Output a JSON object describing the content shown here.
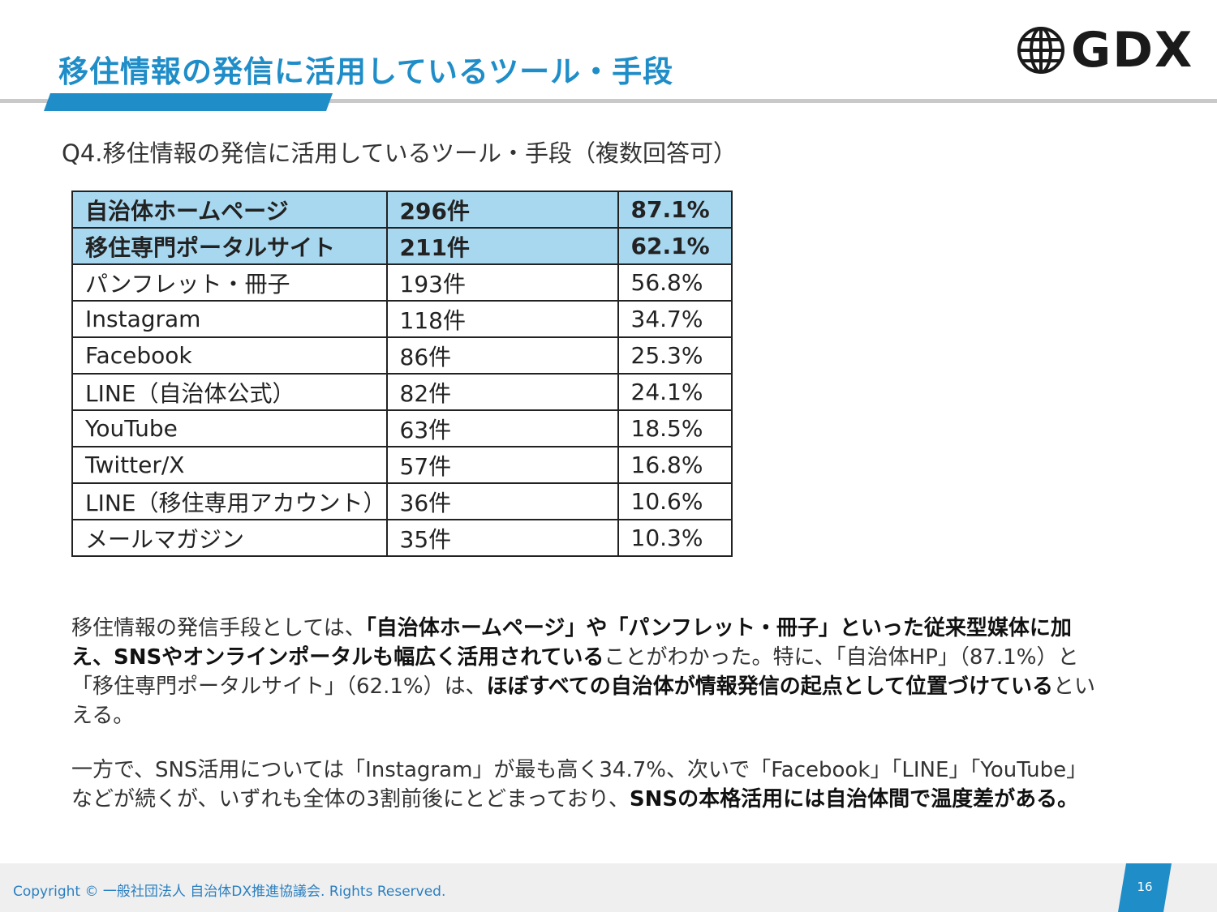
{
  "header": {
    "title": "移住情報の発信に活用しているツール・手段",
    "logo_text": "GDX",
    "logo_icon": "globe-icon"
  },
  "question": "Q4.移住情報の発信に活用しているツール・手段（複数回答可）",
  "table": {
    "rows": [
      {
        "tool": "自治体ホームページ",
        "count": "296件",
        "percent": "87.1%",
        "highlight": true
      },
      {
        "tool": "移住専門ポータルサイト",
        "count": "211件",
        "percent": "62.1%",
        "highlight": true
      },
      {
        "tool": "パンフレット・冊子",
        "count": "193件",
        "percent": "56.8%",
        "highlight": false
      },
      {
        "tool": "Instagram",
        "count": "118件",
        "percent": "34.7%",
        "highlight": false
      },
      {
        "tool": "Facebook",
        "count": "86件",
        "percent": "25.3%",
        "highlight": false
      },
      {
        "tool": "LINE（自治体公式）",
        "count": "82件",
        "percent": "24.1%",
        "highlight": false
      },
      {
        "tool": "YouTube",
        "count": "63件",
        "percent": "18.5%",
        "highlight": false
      },
      {
        "tool": "Twitter/X",
        "count": "57件",
        "percent": "16.8%",
        "highlight": false
      },
      {
        "tool": "LINE（移住専用アカウント）",
        "count": "36件",
        "percent": "10.6%",
        "highlight": false
      },
      {
        "tool": "メールマガジン",
        "count": "35件",
        "percent": "10.3%",
        "highlight": false
      }
    ]
  },
  "paragraph1": {
    "t1": "移住情報の発信手段としては、",
    "b1": "「自治体ホームページ」や「パンフレット・冊子」といった従来型媒体に加え、SNSやオンラインポータルも幅広く活用されている",
    "t2": "ことがわかった。特に、「自治体HP」（87.1%）と「移住専門ポータルサイト」（62.1%）は、",
    "b2": "ほぼすべての自治体が情報発信の起点として位置づけている",
    "t3": "といえる。"
  },
  "paragraph2": {
    "t1": "一方で、SNS活用については「Instagram」が最も高く34.7%、次いで「Facebook」「LINE」「YouTube」などが続くが、いずれも全体の3割前後にとどまっており、",
    "b1": "SNSの本格活用には自治体間で温度差がある。"
  },
  "footer": {
    "copyright": "Copyright © 一般社団法人 自治体DX推進協議会. Rights Reserved.",
    "page_number": "16"
  },
  "colors": {
    "accent": "#1f8dc8",
    "highlight_row": "#a8d8f0",
    "footer_bg": "#efefef"
  }
}
